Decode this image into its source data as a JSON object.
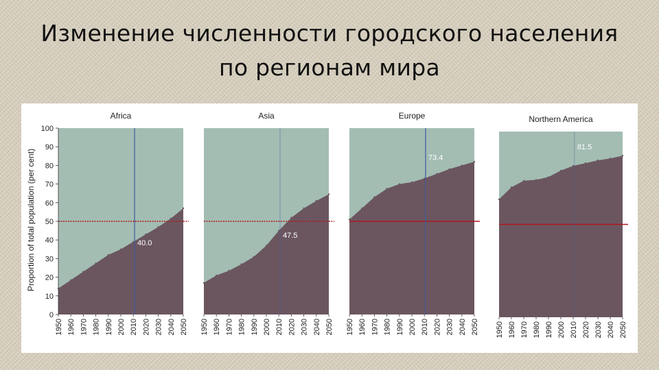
{
  "title": {
    "line1": "Изменение численности городского населения",
    "line2": "по регионам мира"
  },
  "colors": {
    "urban": "#6b5660",
    "rural": "#a3bdb3",
    "threshold_line": "#b0161e",
    "marker_line": "#3d5a99",
    "panel_bg": "#ffffff"
  },
  "chart_data": [
    {
      "type": "area",
      "title": "Africa",
      "ylabel": "Proportion of total population (per cent)",
      "xlabel": "",
      "x": [
        1950,
        1960,
        1970,
        1980,
        1990,
        2000,
        2010,
        2020,
        2030,
        2040,
        2050
      ],
      "values": [
        14,
        18.5,
        23,
        27.5,
        32,
        35,
        39,
        43,
        47,
        51.5,
        57
      ],
      "xlim": [
        1950,
        2050
      ],
      "ylim": [
        0,
        100
      ],
      "yticks": [
        0,
        10,
        20,
        30,
        40,
        50,
        60,
        70,
        80,
        90,
        100
      ],
      "threshold": 50,
      "marker": {
        "x": 2011,
        "value": 40.0,
        "label": "40.0"
      }
    },
    {
      "type": "area",
      "title": "Asia",
      "x": [
        1950,
        1960,
        1970,
        1980,
        1990,
        2000,
        2010,
        2020,
        2030,
        2040,
        2050
      ],
      "values": [
        17,
        21,
        23.5,
        27,
        31,
        37,
        45,
        52,
        57,
        61,
        64.5
      ],
      "xlim": [
        1950,
        2050
      ],
      "ylim": [
        0,
        100
      ],
      "threshold": 50,
      "marker": {
        "x": 2011,
        "value": 47.5,
        "label": "47.5"
      }
    },
    {
      "type": "area",
      "title": "Europe",
      "x": [
        1950,
        1960,
        1970,
        1980,
        1990,
        2000,
        2010,
        2020,
        2030,
        2040,
        2050
      ],
      "values": [
        51,
        57,
        63,
        67.5,
        70,
        71,
        73,
        75.5,
        78,
        80,
        82
      ],
      "xlim": [
        1950,
        2050
      ],
      "ylim": [
        0,
        100
      ],
      "threshold": 50,
      "marker": {
        "x": 2011,
        "value": 73.4,
        "label": "73.4"
      }
    },
    {
      "type": "area",
      "title": "Northern America",
      "x": [
        1950,
        1960,
        1970,
        1980,
        1990,
        2000,
        2010,
        2020,
        2030,
        2040,
        2050
      ],
      "values": [
        63.5,
        70,
        73.5,
        74,
        75.5,
        79,
        81.5,
        83,
        84.5,
        85.5,
        87
      ],
      "xlim": [
        1950,
        2050
      ],
      "ylim": [
        0,
        100
      ],
      "threshold": 50,
      "marker": {
        "x": 2011,
        "value": 81.5,
        "label": "81.5"
      }
    }
  ]
}
